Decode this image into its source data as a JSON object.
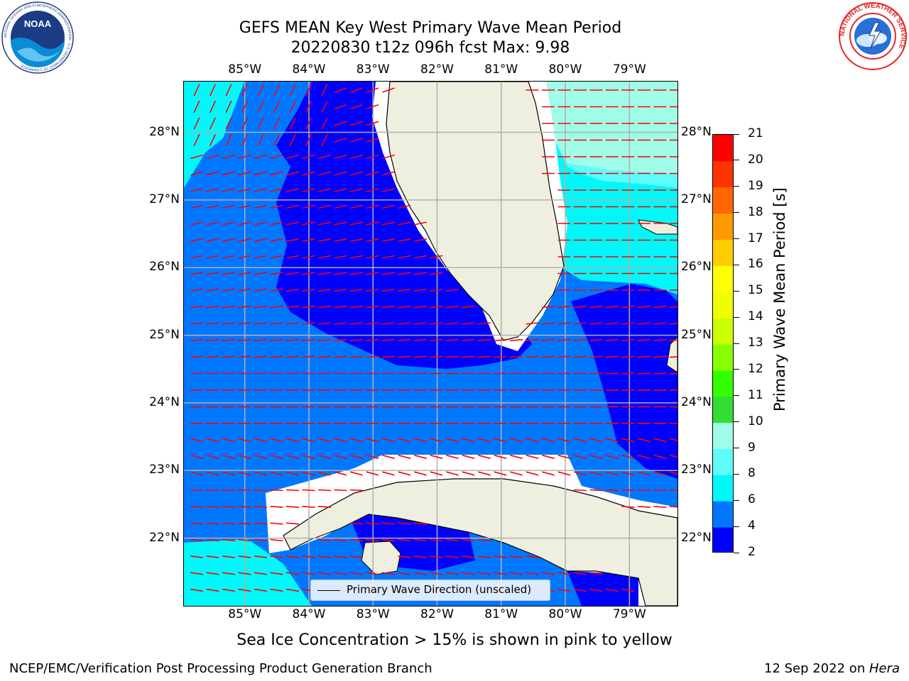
{
  "header": {
    "title_line1": "GEFS MEAN Key West Primary Wave Mean Period",
    "title_line2": "20220830 t12z 096h fcst   Max: 9.98"
  },
  "logos": {
    "noaa_text": "NOAA",
    "noaa_ring_text": "NATIONAL OCEANIC AND ATMOSPHERIC ADMINISTRATION · U.S. DEPARTMENT OF COMMERCE",
    "nws_ring_text": "NATIONAL WEATHER SERVICE"
  },
  "map": {
    "lon_labels": [
      "85°W",
      "84°W",
      "83°W",
      "82°W",
      "81°W",
      "80°W",
      "79°W"
    ],
    "lat_labels": [
      "28°N",
      "27°N",
      "26°N",
      "25°N",
      "24°N",
      "23°N",
      "22°N"
    ],
    "lon_values": [
      -85,
      -84,
      -83,
      -82,
      -81,
      -80,
      -79
    ],
    "lat_values": [
      28,
      27,
      26,
      25,
      24,
      23,
      22
    ],
    "extent": {
      "lon_min": -85.95,
      "lon_max": -78.25,
      "lat_min": 21.0,
      "lat_max": 28.75
    },
    "land_color": "#efefdf",
    "arrow_color": "#ff0000",
    "gridline_color": "#b0b0b0"
  },
  "legend": {
    "label": "Primary Wave Direction (unscaled)"
  },
  "colorbar": {
    "title": "Primary Wave Mean Period [s]",
    "ticks": [
      "21",
      "20",
      "19",
      "18",
      "17",
      "16",
      "15",
      "14",
      "13",
      "12",
      "11",
      "10",
      "9",
      "8",
      "6",
      "4",
      "2"
    ],
    "colors_bottom_to_top": [
      "#0000ff",
      "#0077ff",
      "#00f8f8",
      "#5ffbfb",
      "#9ffde9",
      "#33dd33",
      "#33ff00",
      "#88ff00",
      "#ccff00",
      "#eeff00",
      "#ffff00",
      "#ffcc00",
      "#ff9900",
      "#ff6600",
      "#ff3300",
      "#ff0000"
    ]
  },
  "notes": {
    "sea_ice": "Sea Ice Concentration > 15% is shown in pink to yellow"
  },
  "footer": {
    "left": "NCEP/EMC/Verification Post Processing Product Generation Branch",
    "right_date": "12 Sep 2022 on ",
    "right_host": "Hera"
  }
}
